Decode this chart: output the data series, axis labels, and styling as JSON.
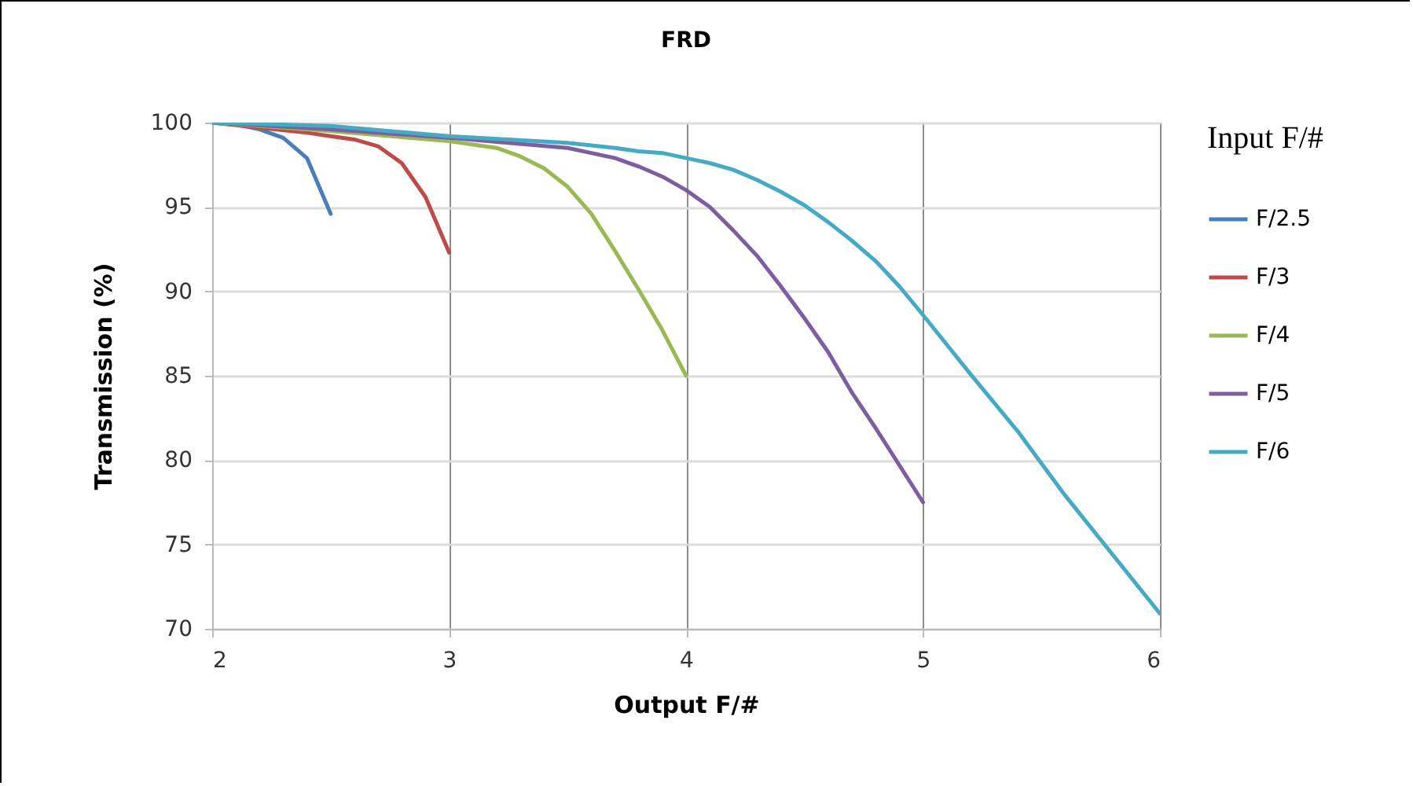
{
  "chart_data": {
    "type": "line",
    "title": "FRD",
    "xlabel": "Output F/#",
    "ylabel": "Transmission (%)",
    "legend_title": "Input F/#",
    "legend": "right",
    "grid": true,
    "marker": "none",
    "line_style": "solid",
    "xlim": [
      2,
      6
    ],
    "xticks": [
      2,
      3,
      4,
      5,
      6
    ],
    "ylim": [
      70,
      100
    ],
    "yticks": [
      70,
      75,
      80,
      85,
      90,
      95,
      100
    ],
    "series": [
      {
        "name": "F/2.5",
        "color": "#4a7ebb",
        "x": [
          2.0,
          2.1,
          2.2,
          2.3,
          2.4,
          2.5
        ],
        "values": [
          100,
          99.9,
          99.6,
          99.1,
          97.9,
          94.6
        ]
      },
      {
        "name": "F/3",
        "color": "#be4b48",
        "x": [
          2.0,
          2.2,
          2.4,
          2.5,
          2.6,
          2.7,
          2.8,
          2.9,
          3.0
        ],
        "values": [
          100,
          99.7,
          99.4,
          99.2,
          99.0,
          98.6,
          97.6,
          95.6,
          92.3
        ]
      },
      {
        "name": "F/4",
        "color": "#98b954",
        "x": [
          2.0,
          2.5,
          3.0,
          3.2,
          3.3,
          3.4,
          3.5,
          3.6,
          3.7,
          3.8,
          3.9,
          4.0
        ],
        "values": [
          100,
          99.5,
          98.9,
          98.5,
          98.0,
          97.3,
          96.2,
          94.6,
          92.4,
          90.1,
          87.7,
          85.0
        ]
      },
      {
        "name": "F/5",
        "color": "#7d5fa0",
        "x": [
          2.0,
          2.5,
          3.0,
          3.5,
          3.6,
          3.7,
          3.8,
          3.9,
          4.0,
          4.1,
          4.2,
          4.3,
          4.4,
          4.5,
          4.6,
          4.7,
          4.8,
          4.9,
          5.0
        ],
        "values": [
          100,
          99.6,
          99.1,
          98.5,
          98.2,
          97.9,
          97.4,
          96.8,
          96.0,
          95.0,
          93.6,
          92.1,
          90.3,
          88.4,
          86.4,
          84.0,
          81.9,
          79.7,
          77.5
        ]
      },
      {
        "name": "F/6",
        "color": "#46aac5",
        "x": [
          2.0,
          2.5,
          3.0,
          3.5,
          3.7,
          3.8,
          3.9,
          4.0,
          4.1,
          4.2,
          4.3,
          4.4,
          4.5,
          4.6,
          4.7,
          4.8,
          4.9,
          5.0,
          5.2,
          5.4,
          5.6,
          5.8,
          6.0
        ],
        "values": [
          100,
          99.8,
          99.2,
          98.8,
          98.5,
          98.3,
          98.2,
          97.9,
          97.6,
          97.2,
          96.6,
          95.9,
          95.1,
          94.1,
          93.0,
          91.8,
          90.3,
          88.6,
          85.1,
          81.7,
          77.9,
          74.4,
          70.9
        ]
      }
    ]
  }
}
